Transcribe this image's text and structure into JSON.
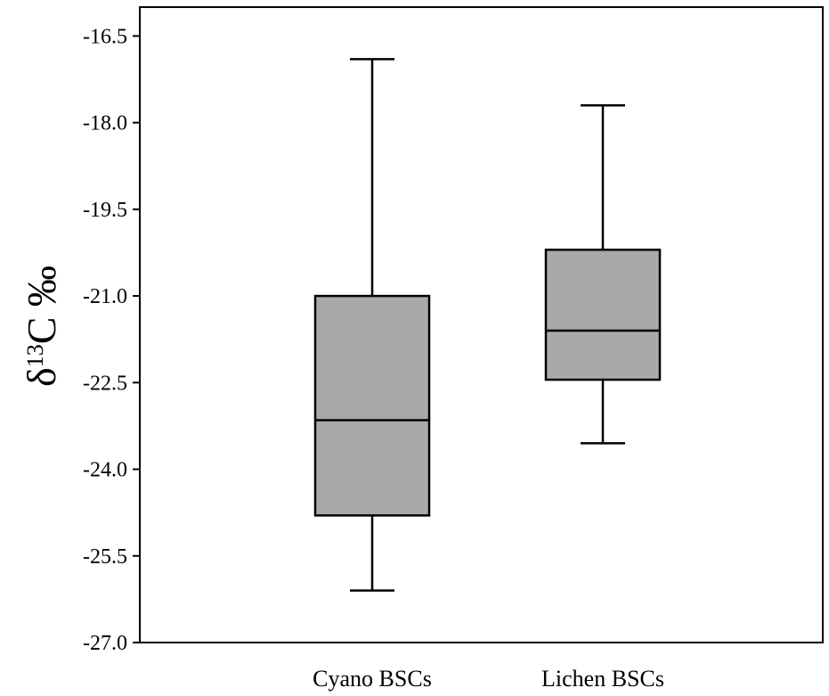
{
  "chart_data": {
    "type": "box",
    "title": "",
    "xlabel": "",
    "ylabel": {
      "prefix": "δ",
      "superscript": "13",
      "suffix": "C ‰"
    },
    "ylim": [
      -27.0,
      -16.0
    ],
    "yticks": [
      -16.5,
      -18.0,
      -19.5,
      -21.0,
      -22.5,
      -24.0,
      -25.5,
      -27.0
    ],
    "ytick_labels": [
      "-16.5",
      "-18.0",
      "-19.5",
      "-21.0",
      "-22.5",
      "-24.0",
      "-25.5",
      "-27.0"
    ],
    "categories": [
      "Cyano BSCs",
      "Lichen BSCs"
    ],
    "boxes": [
      {
        "category": "Cyano BSCs",
        "whisker_high": -16.9,
        "q3": -21.0,
        "median": -23.15,
        "q1": -24.8,
        "whisker_low": -26.1
      },
      {
        "category": "Lichen BSCs",
        "whisker_high": -17.7,
        "q3": -20.2,
        "median": -21.6,
        "q1": -22.45,
        "whisker_low": -23.55
      }
    ],
    "box_color": "#a9a9a9",
    "line_color": "#000000",
    "grid": false,
    "legend": "none"
  }
}
